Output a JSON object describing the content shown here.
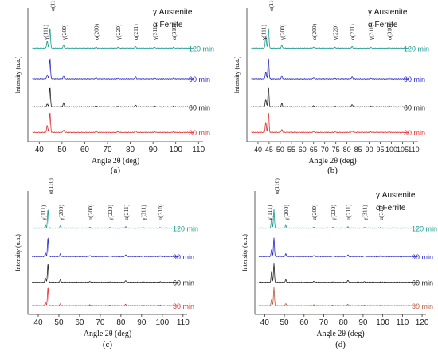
{
  "legend": {
    "gamma": "γ Austenite",
    "alpha": "α Ferrite"
  },
  "chart_data": [
    {
      "type": "line",
      "panel_label": "(a)",
      "xlabel": "Angle 2θ (deg)",
      "ylabel": "Intensity (u.a.)",
      "xlim": [
        35,
        112
      ],
      "xticks": [
        40,
        50,
        60,
        70,
        80,
        90,
        100,
        110
      ],
      "legend_position": "top-right",
      "peak_labels": [
        {
          "label": "γ(111)",
          "x": 43.5
        },
        {
          "label": "α(110)",
          "x": 44.7
        },
        {
          "label": "γ(200)",
          "x": 50.7
        },
        {
          "label": "α(200)",
          "x": 65.0
        },
        {
          "label": "γ(220)",
          "x": 74.6
        },
        {
          "label": "α(211)",
          "x": 82.3
        },
        {
          "label": "γ(311)",
          "x": 90.7
        },
        {
          "label": "α(310)",
          "x": 99.0
        }
      ],
      "series": [
        {
          "name": "30 min",
          "color": "#e03030",
          "peaks": [
            [
              43.5,
              0.35
            ],
            [
              44.7,
              1.0
            ],
            [
              50.7,
              0.12
            ],
            [
              65.0,
              0.05
            ],
            [
              74.6,
              0.04
            ],
            [
              82.3,
              0.08
            ],
            [
              90.7,
              0.04
            ],
            [
              99.0,
              0.03
            ]
          ]
        },
        {
          "name": "60 min",
          "color": "#222222",
          "peaks": [
            [
              43.5,
              0.15
            ],
            [
              44.7,
              1.0
            ],
            [
              50.7,
              0.2
            ],
            [
              65.0,
              0.06
            ],
            [
              74.6,
              0.03
            ],
            [
              82.3,
              0.1
            ],
            [
              90.7,
              0.04
            ],
            [
              99.0,
              0.03
            ]
          ]
        },
        {
          "name": "90 min",
          "color": "#2828c8",
          "peaks": [
            [
              43.5,
              0.2
            ],
            [
              44.7,
              1.0
            ],
            [
              50.7,
              0.15
            ],
            [
              65.0,
              0.06
            ],
            [
              74.6,
              0.03
            ],
            [
              82.3,
              0.1
            ],
            [
              90.7,
              0.04
            ],
            [
              99.0,
              0.03
            ]
          ]
        },
        {
          "name": "120 min",
          "color": "#1a9a90",
          "peaks": [
            [
              43.5,
              0.35
            ],
            [
              44.7,
              1.0
            ],
            [
              50.7,
              0.15
            ],
            [
              65.0,
              0.05
            ],
            [
              74.6,
              0.04
            ],
            [
              82.3,
              0.08
            ],
            [
              90.7,
              0.04
            ],
            [
              99.0,
              0.03
            ]
          ]
        }
      ]
    },
    {
      "type": "line",
      "panel_label": "(b)",
      "xlabel": "Angle 2θ (deg)",
      "ylabel": "Intensity (u.a.)",
      "xlim": [
        35,
        112
      ],
      "xticks": [
        40,
        45,
        50,
        55,
        60,
        65,
        70,
        75,
        80,
        85,
        90,
        95,
        100,
        105,
        110
      ],
      "legend_position": "top-right",
      "peak_labels": [
        {
          "label": "γ(111)",
          "x": 43.5
        },
        {
          "label": "α(110)",
          "x": 44.7
        },
        {
          "label": "γ(200)",
          "x": 50.7
        },
        {
          "label": "α(200)",
          "x": 65.0
        },
        {
          "label": "γ(220)",
          "x": 74.6
        },
        {
          "label": "α(211)",
          "x": 82.3
        },
        {
          "label": "γ(311)",
          "x": 90.7
        },
        {
          "label": "α(310)",
          "x": 99.0
        }
      ],
      "series": [
        {
          "name": "30 min",
          "color": "#e03030",
          "peaks": [
            [
              43.5,
              0.5
            ],
            [
              44.7,
              1.0
            ],
            [
              50.7,
              0.15
            ],
            [
              65.0,
              0.05
            ],
            [
              74.6,
              0.03
            ],
            [
              82.3,
              0.08
            ],
            [
              90.7,
              0.03
            ],
            [
              99.0,
              0.03
            ]
          ]
        },
        {
          "name": "60 min",
          "color": "#222222",
          "peaks": [
            [
              43.5,
              0.4
            ],
            [
              44.7,
              1.0
            ],
            [
              50.7,
              0.18
            ],
            [
              65.0,
              0.06
            ],
            [
              74.6,
              0.03
            ],
            [
              82.3,
              0.12
            ],
            [
              90.7,
              0.04
            ],
            [
              99.0,
              0.03
            ]
          ]
        },
        {
          "name": "90 min",
          "color": "#2828c8",
          "peaks": [
            [
              43.5,
              0.35
            ],
            [
              44.7,
              1.0
            ],
            [
              50.7,
              0.15
            ],
            [
              65.0,
              0.06
            ],
            [
              74.6,
              0.03
            ],
            [
              82.3,
              0.1
            ],
            [
              90.7,
              0.04
            ],
            [
              99.0,
              0.03
            ]
          ]
        },
        {
          "name": "120 min",
          "color": "#1a9a90",
          "peaks": [
            [
              43.5,
              0.6
            ],
            [
              44.7,
              1.0
            ],
            [
              50.7,
              0.15
            ],
            [
              65.0,
              0.05
            ],
            [
              74.6,
              0.04
            ],
            [
              82.3,
              0.08
            ],
            [
              90.7,
              0.04
            ],
            [
              99.0,
              0.03
            ]
          ]
        }
      ]
    },
    {
      "type": "line",
      "panel_label": "(c)",
      "xlabel": "Angle 2θ (deg)",
      "ylabel": "Intensity (u.a.)",
      "xlim": [
        35,
        112
      ],
      "xticks": [
        40,
        50,
        60,
        70,
        80,
        90,
        100,
        110
      ],
      "legend_position": "top-right",
      "peak_labels": [
        {
          "label": "γ(111)",
          "x": 43.5
        },
        {
          "label": "α(110)",
          "x": 44.7
        },
        {
          "label": "γ(200)",
          "x": 50.7
        },
        {
          "label": "α(200)",
          "x": 65.0
        },
        {
          "label": "γ(220)",
          "x": 74.6
        },
        {
          "label": "α(211)",
          "x": 82.3
        },
        {
          "label": "γ(311)",
          "x": 90.7
        },
        {
          "label": "α(310)",
          "x": 99.0
        }
      ],
      "series": [
        {
          "name": "30 min",
          "color": "#e03030",
          "peaks": [
            [
              43.5,
              0.2
            ],
            [
              44.7,
              1.0
            ],
            [
              50.7,
              0.12
            ],
            [
              65.0,
              0.05
            ],
            [
              74.6,
              0.03
            ],
            [
              82.3,
              0.08
            ],
            [
              90.7,
              0.03
            ],
            [
              99.0,
              0.03
            ]
          ]
        },
        {
          "name": "60 min",
          "color": "#222222",
          "peaks": [
            [
              43.5,
              0.25
            ],
            [
              44.7,
              1.0
            ],
            [
              50.7,
              0.15
            ],
            [
              65.0,
              0.05
            ],
            [
              74.6,
              0.03
            ],
            [
              82.3,
              0.1
            ],
            [
              90.7,
              0.04
            ],
            [
              99.0,
              0.03
            ]
          ]
        },
        {
          "name": "90 min",
          "color": "#2828c8",
          "peaks": [
            [
              43.5,
              0.2
            ],
            [
              44.7,
              1.0
            ],
            [
              50.7,
              0.15
            ],
            [
              65.0,
              0.06
            ],
            [
              74.6,
              0.03
            ],
            [
              82.3,
              0.1
            ],
            [
              90.7,
              0.04
            ],
            [
              99.0,
              0.03
            ]
          ]
        },
        {
          "name": "120 min",
          "color": "#1a9a90",
          "peaks": [
            [
              43.5,
              0.15
            ],
            [
              44.7,
              1.0
            ],
            [
              50.7,
              0.12
            ],
            [
              65.0,
              0.05
            ],
            [
              74.6,
              0.03
            ],
            [
              82.3,
              0.08
            ],
            [
              90.7,
              0.03
            ],
            [
              99.0,
              0.03
            ]
          ]
        }
      ]
    },
    {
      "type": "line",
      "panel_label": "(d)",
      "xlabel": "Angle 2θ (deg)",
      "ylabel": "Intensity (u.a.)",
      "xlim": [
        35,
        122
      ],
      "xticks": [
        40,
        50,
        60,
        70,
        80,
        90,
        100,
        110,
        120
      ],
      "legend_position": "top-right",
      "peak_labels": [
        {
          "label": "γ(111)",
          "x": 43.5
        },
        {
          "label": "α(110)",
          "x": 44.7
        },
        {
          "label": "γ(200)",
          "x": 50.7
        },
        {
          "label": "α(200)",
          "x": 65.0
        },
        {
          "label": "γ(220)",
          "x": 74.6
        },
        {
          "label": "α(211)",
          "x": 82.3
        },
        {
          "label": "γ(311)",
          "x": 90.7
        },
        {
          "label": "α(310)",
          "x": 99.0
        }
      ],
      "series": [
        {
          "name": "30 min",
          "color": "#b85a3a",
          "peaks": [
            [
              43.5,
              0.35
            ],
            [
              44.7,
              1.0
            ],
            [
              50.7,
              0.12
            ],
            [
              65.0,
              0.05
            ],
            [
              74.6,
              0.03
            ],
            [
              82.3,
              0.08
            ],
            [
              90.7,
              0.03
            ],
            [
              99.0,
              0.03
            ]
          ]
        },
        {
          "name": "60 min",
          "color": "#222222",
          "peaks": [
            [
              43.5,
              0.6
            ],
            [
              44.7,
              1.0
            ],
            [
              50.7,
              0.15
            ],
            [
              65.0,
              0.06
            ],
            [
              74.6,
              0.03
            ],
            [
              82.3,
              0.12
            ],
            [
              90.7,
              0.04
            ],
            [
              99.0,
              0.03
            ]
          ]
        },
        {
          "name": "90 min",
          "color": "#2828c8",
          "peaks": [
            [
              43.5,
              0.4
            ],
            [
              44.7,
              1.0
            ],
            [
              50.7,
              0.15
            ],
            [
              65.0,
              0.06
            ],
            [
              74.6,
              0.03
            ],
            [
              82.3,
              0.1
            ],
            [
              90.7,
              0.04
            ],
            [
              99.0,
              0.03
            ]
          ]
        },
        {
          "name": "120 min",
          "color": "#1a9a90",
          "peaks": [
            [
              43.5,
              0.55
            ],
            [
              44.7,
              1.0
            ],
            [
              50.7,
              0.15
            ],
            [
              65.0,
              0.05
            ],
            [
              74.6,
              0.04
            ],
            [
              82.3,
              0.08
            ],
            [
              90.7,
              0.04
            ],
            [
              99.0,
              0.03
            ]
          ]
        }
      ]
    }
  ]
}
